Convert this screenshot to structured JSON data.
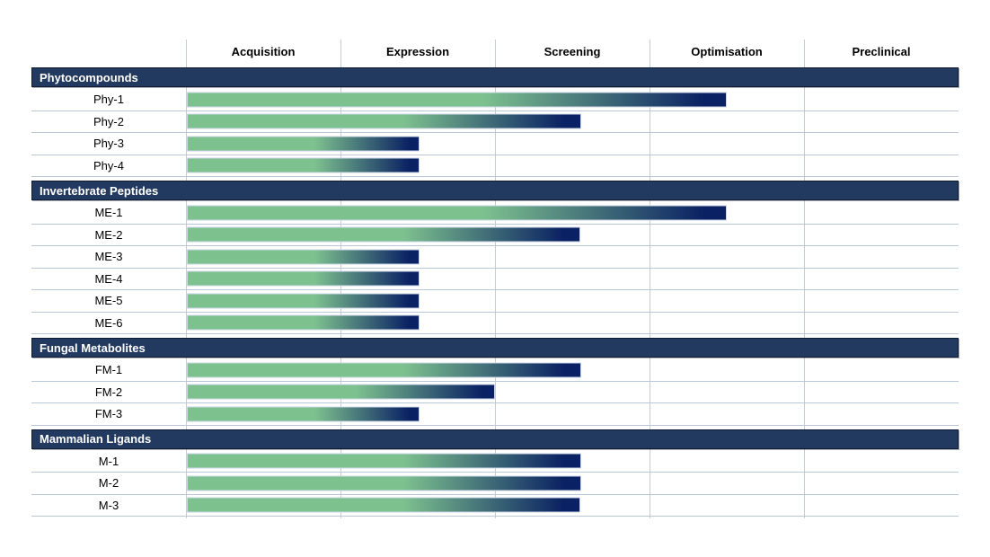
{
  "chart_data": {
    "type": "bar",
    "title": "",
    "orientation": "horizontal-pipeline",
    "stages": [
      "Acquisition",
      "Expression",
      "Screening",
      "Optimisation",
      "Preclinical"
    ],
    "stage_axis_note": "end_stage is measured in stage-columns completed out of 5",
    "groups": [
      {
        "name": "Phytocompounds",
        "items": [
          {
            "label": "Phy-1",
            "end_stage": 3.5
          },
          {
            "label": "Phy-2",
            "end_stage": 2.56
          },
          {
            "label": "Phy-3",
            "end_stage": 1.51
          },
          {
            "label": "Phy-4",
            "end_stage": 1.51
          }
        ]
      },
      {
        "name": "Invertebrate Peptides",
        "items": [
          {
            "label": "ME-1",
            "end_stage": 3.5
          },
          {
            "label": "ME-2",
            "end_stage": 2.55
          },
          {
            "label": "ME-3",
            "end_stage": 1.51
          },
          {
            "label": "ME-4",
            "end_stage": 1.51
          },
          {
            "label": "ME-5",
            "end_stage": 1.51
          },
          {
            "label": "ME-6",
            "end_stage": 1.51
          }
        ]
      },
      {
        "name": "Fungal Metabolites",
        "items": [
          {
            "label": "FM-1",
            "end_stage": 2.56
          },
          {
            "label": "FM-2",
            "end_stage": 2.0
          },
          {
            "label": "FM-3",
            "end_stage": 1.51
          }
        ]
      },
      {
        "name": "Mammalian Ligands",
        "items": [
          {
            "label": "M-1",
            "end_stage": 2.56
          },
          {
            "label": "M-2",
            "end_stage": 2.56
          },
          {
            "label": "M-3",
            "end_stage": 2.55
          }
        ]
      }
    ],
    "colors": {
      "category_bar": "#233a60",
      "category_text": "#ffffff",
      "bar_gradient_start": "#7dc18f",
      "bar_gradient_end": "#0a2163",
      "bar_border": "#ccd6e4",
      "grid_vertical": "#c6cdd8",
      "row_separator": "#b9c7dc",
      "header_text": "#000000"
    },
    "legend_position": "none",
    "grid": true
  }
}
